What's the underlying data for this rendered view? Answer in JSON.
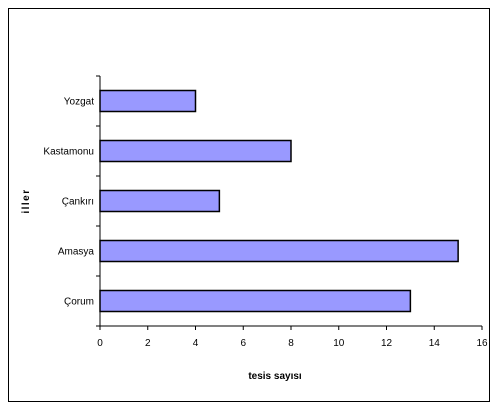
{
  "chart_data": {
    "type": "bar",
    "orientation": "horizontal",
    "categories": [
      "Yozgat",
      "Kastamonu",
      "Çankırı",
      "Amasya",
      "Çorum"
    ],
    "values": [
      4,
      8,
      5,
      15,
      13
    ],
    "title": "",
    "xlabel": "tesis sayısı",
    "ylabel": "iller",
    "xlim": [
      0,
      16
    ],
    "x_ticks": [
      "0",
      "2",
      "4",
      "6",
      "8",
      "10",
      "12",
      "14",
      "16"
    ],
    "grid": false,
    "legend": "none",
    "bar_color": "#9999ff",
    "bar_edge_color": "#000000"
  }
}
